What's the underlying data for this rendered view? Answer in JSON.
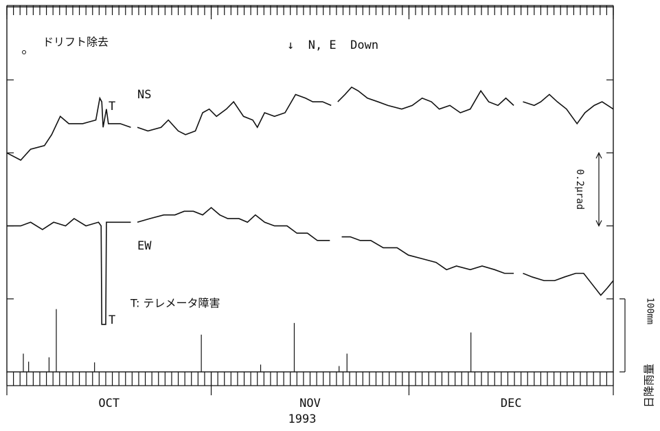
{
  "chart_data": {
    "type": "line",
    "annotations": [
      "ドリフト除去",
      "↓  N, E  Down",
      "T",
      "T",
      "T: テレメータ障害"
    ],
    "month_labels": [
      "OCT",
      "NOV",
      "DEC"
    ],
    "year": "1993",
    "xlim": [
      0,
      92
    ],
    "xticks": [
      0,
      31,
      61,
      92
    ],
    "ylim": [
      0,
      1
    ],
    "yticks": [
      0.2,
      0.4,
      0.6,
      0.8
    ],
    "y2lim": [
      0,
      100
    ],
    "y2ticks": [
      {
        "value": 100,
        "label": "100mm"
      }
    ],
    "scale_bar": {
      "label": "0.2μrad",
      "value": 0.2
    },
    "series": [
      {
        "name": "NS",
        "color": "#111111",
        "x": [
          0,
          2.1,
          3.6,
          5.7,
          6.8,
          8.1,
          9.4,
          11.5,
          13.5,
          14.1,
          14.4,
          14.6,
          15.1,
          15.4,
          17.2,
          18.8,
          null,
          19.8,
          21.4,
          23.4,
          24.5,
          26.0,
          27.1,
          28.6,
          29.7,
          30.7,
          31.8,
          33.3,
          34.4,
          35.9,
          37.3,
          38.0,
          39.1,
          40.6,
          42.2,
          43.8,
          45.3,
          46.4,
          47.9,
          49.2,
          null,
          50.2,
          51.3,
          52.3,
          53.3,
          54.7,
          56.3,
          57.8,
          59.9,
          61.5,
          63.0,
          64.4,
          65.6,
          67.2,
          68.8,
          70.3,
          71.9,
          73.1,
          74.5,
          75.7,
          76.9,
          null,
          78.3,
          80.0,
          81.0,
          82.3,
          83.5,
          84.9,
          86.5,
          87.7,
          89.1,
          90.3,
          92.0
        ],
        "values": [
          0.6,
          0.58,
          0.61,
          0.62,
          0.65,
          0.7,
          0.68,
          0.68,
          0.69,
          0.75,
          0.74,
          0.67,
          0.72,
          0.68,
          0.68,
          0.67,
          null,
          0.67,
          0.66,
          0.67,
          0.69,
          0.66,
          0.65,
          0.66,
          0.71,
          0.72,
          0.7,
          0.72,
          0.74,
          0.7,
          0.69,
          0.67,
          0.71,
          0.7,
          0.71,
          0.76,
          0.75,
          0.74,
          0.74,
          0.73,
          null,
          0.74,
          0.76,
          0.78,
          0.77,
          0.75,
          0.74,
          0.73,
          0.72,
          0.73,
          0.75,
          0.74,
          0.72,
          0.73,
          0.71,
          0.72,
          0.77,
          0.74,
          0.73,
          0.75,
          0.73,
          null,
          0.74,
          0.73,
          0.74,
          0.76,
          0.74,
          0.72,
          0.68,
          0.71,
          0.73,
          0.74,
          0.72
        ]
      },
      {
        "name": "EW",
        "color": "#111111",
        "x": [
          0,
          2.1,
          3.6,
          5.4,
          7.1,
          8.9,
          10.2,
          12.0,
          13.9,
          14.3,
          14.4,
          15.0,
          15.1,
          16.7,
          18.8,
          null,
          19.8,
          21.7,
          23.8,
          25.5,
          26.9,
          28.3,
          29.7,
          31.0,
          32.3,
          33.5,
          35.2,
          36.5,
          37.7,
          39.1,
          40.6,
          42.5,
          44.0,
          45.6,
          47.1,
          49.0,
          null,
          50.8,
          52.1,
          53.6,
          55.2,
          57.1,
          59.2,
          60.9,
          63.0,
          65.1,
          66.7,
          68.2,
          70.3,
          72.1,
          74.0,
          75.5,
          76.9,
          null,
          78.3,
          79.7,
          81.5,
          83.1,
          84.6,
          86.3,
          87.5,
          88.8,
          90.1,
          91.1,
          92.0
        ],
        "values": [
          0.4,
          0.4,
          0.41,
          0.39,
          0.41,
          0.4,
          0.42,
          0.4,
          0.41,
          0.4,
          0.13,
          0.13,
          0.41,
          0.41,
          0.41,
          null,
          0.41,
          0.42,
          0.43,
          0.43,
          0.44,
          0.44,
          0.43,
          0.45,
          0.43,
          0.42,
          0.42,
          0.41,
          0.43,
          0.41,
          0.4,
          0.4,
          0.38,
          0.38,
          0.36,
          0.36,
          null,
          0.37,
          0.37,
          0.36,
          0.36,
          0.34,
          0.34,
          0.32,
          0.31,
          0.3,
          0.28,
          0.29,
          0.28,
          0.29,
          0.28,
          0.27,
          0.27,
          null,
          0.27,
          0.26,
          0.25,
          0.25,
          0.26,
          0.27,
          0.27,
          0.24,
          0.21,
          0.23,
          0.25
        ]
      },
      {
        "name": "日降雨量",
        "color": "#111111",
        "axis": "y2",
        "kind": "bar",
        "x": [
          2.5,
          3.3,
          6.4,
          7.5,
          13.3,
          29.5,
          38.5,
          43.6,
          50.4,
          51.6,
          70.4
        ],
        "values": [
          25,
          14,
          20,
          86,
          13,
          51,
          10,
          67,
          8,
          25,
          54
        ]
      }
    ]
  }
}
